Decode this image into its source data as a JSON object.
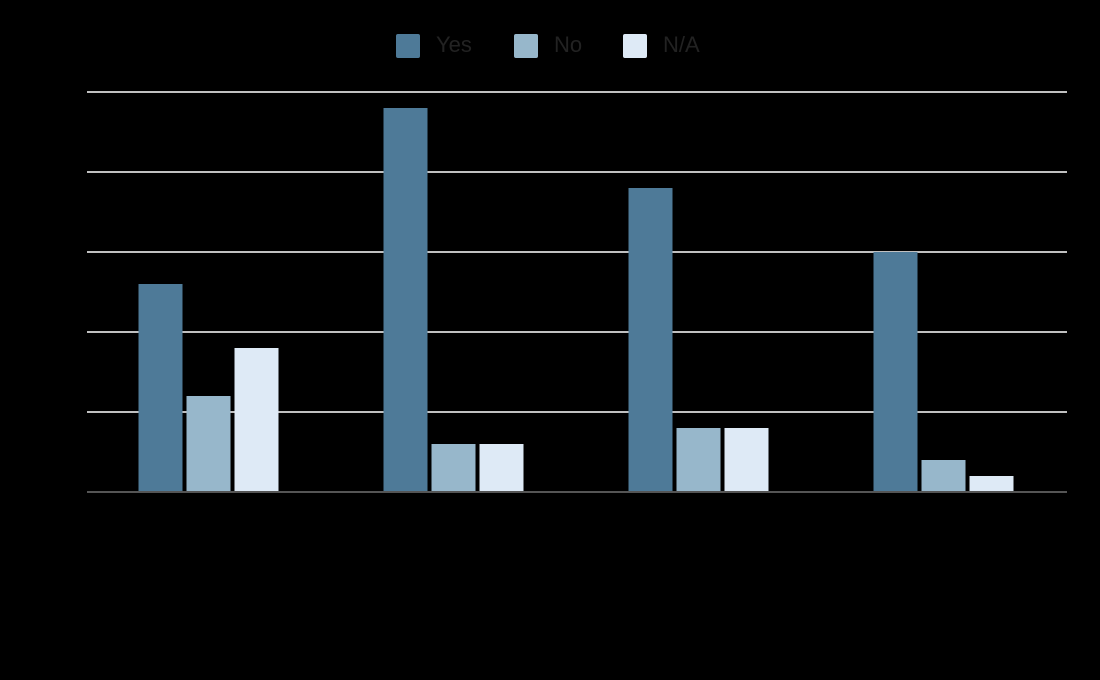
{
  "chart_data": {
    "type": "bar",
    "categories": [
      "",
      "",
      "",
      ""
    ],
    "series": [
      {
        "name": "Yes",
        "color": "#4e7a98",
        "values": [
          26,
          48,
          38,
          30
        ]
      },
      {
        "name": "No",
        "color": "#97b7cb",
        "values": [
          12,
          6,
          8,
          4
        ]
      },
      {
        "name": "N/A",
        "color": "#deeaf6",
        "values": [
          18,
          6,
          8,
          2
        ]
      }
    ],
    "title": "",
    "xlabel": "",
    "ylabel": "",
    "ylim": [
      0,
      50
    ],
    "grid": true,
    "legend": "top-center",
    "background": "#000000",
    "gridline_color": "#ffffff",
    "baseline_color": "#555555"
  }
}
